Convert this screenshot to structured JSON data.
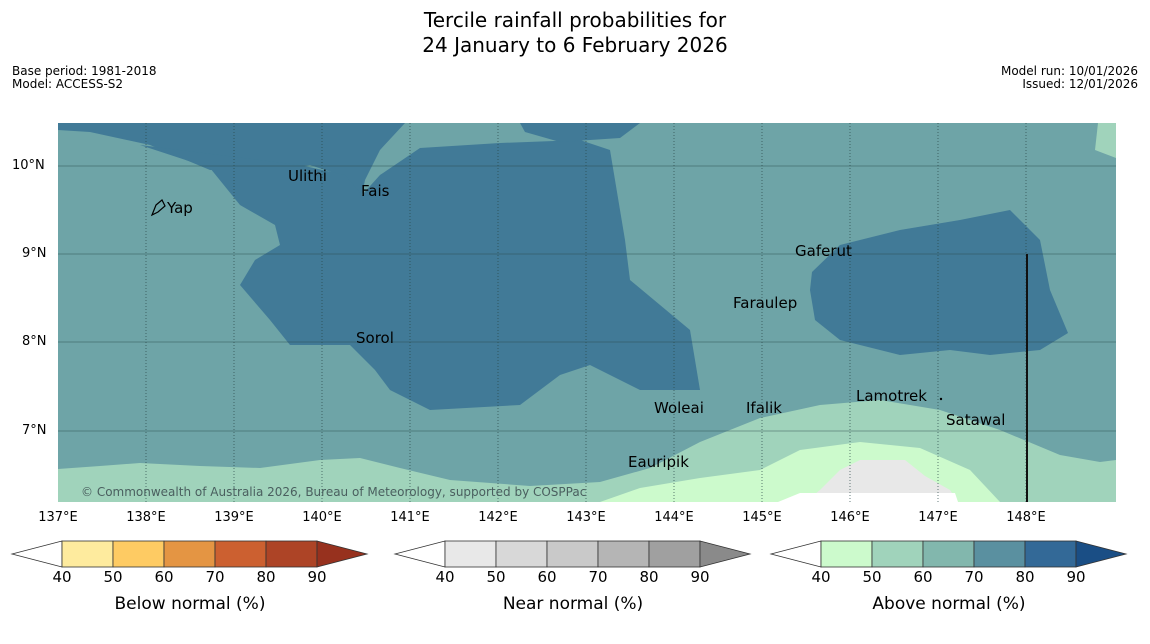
{
  "header": {
    "title_line1": "Tercile rainfall probabilities for",
    "title_line2": "24 January to 6 February 2026",
    "base_period": "Base period: 1981-2018",
    "model": "Model: ACCESS-S2",
    "model_run": "Model run: 10/01/2026",
    "issued": "Issued: 12/01/2026"
  },
  "map": {
    "longitude_labels": [
      "137°E",
      "138°E",
      "139°E",
      "140°E",
      "141°E",
      "142°E",
      "143°E",
      "144°E",
      "145°E",
      "146°E",
      "147°E",
      "148°E"
    ],
    "latitude_labels": [
      "10°N",
      "9°N",
      "8°N",
      "7°N"
    ],
    "places": [
      "Ulithi",
      "Fais",
      "Yap",
      "Gaferut",
      "Faraulep",
      "Sorol",
      "Lamotrek",
      "Woleai",
      "Ifalik",
      "Satawal",
      "Eauripik"
    ],
    "copyright": "© Commonwealth of Australia 2026, Bureau of Meteorology, supported by COSPPac"
  },
  "legends": [
    {
      "title": "Below normal (%)",
      "ticks": [
        "40",
        "50",
        "60",
        "70",
        "80",
        "90"
      ],
      "colors": [
        "#ffffff",
        "#feeb9e",
        "#fecb63",
        "#e49543",
        "#cc6030",
        "#ad4426",
        "#97311e"
      ]
    },
    {
      "title": "Near normal (%)",
      "ticks": [
        "40",
        "50",
        "60",
        "70",
        "80",
        "90"
      ],
      "colors": [
        "#ffffff",
        "#e8e8e8",
        "#d8d8d8",
        "#c9c9c9",
        "#b5b5b5",
        "#a0a0a0",
        "#8a8a8a"
      ]
    },
    {
      "title": "Above normal (%)",
      "ticks": [
        "40",
        "50",
        "60",
        "70",
        "80",
        "90"
      ],
      "colors": [
        "#ffffff",
        "#ccfacc",
        "#a0d3bb",
        "#82b7ad",
        "#5a90a0",
        "#336997",
        "#1a4e85"
      ]
    }
  ]
}
